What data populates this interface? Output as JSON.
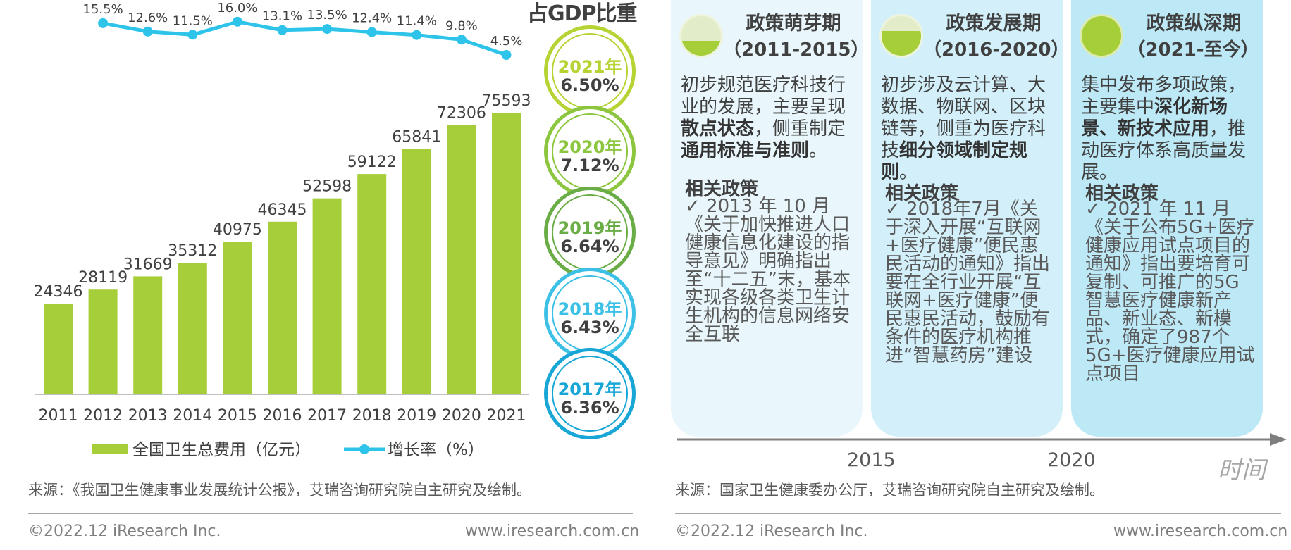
{
  "chart_data": {
    "type": "bar",
    "categories": [
      "2011",
      "2012",
      "2013",
      "2014",
      "2015",
      "2016",
      "2017",
      "2018",
      "2019",
      "2020",
      "2021"
    ],
    "series": [
      {
        "name": "全国卫生总费用（亿元）",
        "type": "bar",
        "values": [
          24346,
          28119,
          31669,
          35312,
          40975,
          46345,
          52598,
          59122,
          65841,
          72306,
          75593
        ],
        "color": "#a6ce39"
      },
      {
        "name": "增长率（%）",
        "type": "line",
        "values": [
          15.5,
          12.6,
          11.5,
          16.0,
          13.1,
          13.5,
          12.4,
          11.4,
          9.8,
          4.5
        ],
        "value_labels": [
          "15.5%",
          "12.6%",
          "11.5%",
          "16.0%",
          "13.1%",
          "13.5%",
          "12.4%",
          "11.4%",
          "9.8%",
          "4.5%"
        ],
        "x": [
          "2012",
          "2013",
          "2014",
          "2015",
          "2016",
          "2017",
          "2018",
          "2019",
          "2020",
          "2021"
        ],
        "color": "#2ec4ea"
      }
    ],
    "legend": "bottom",
    "grid": false
  },
  "gdp": {
    "title": "占GDP比重",
    "items": [
      {
        "year": "2021年",
        "value": "6.50%",
        "color": "#b6d334"
      },
      {
        "year": "2020年",
        "value": "7.12%",
        "color": "#8cc63f"
      },
      {
        "year": "2019年",
        "value": "6.64%",
        "color": "#6aac46"
      },
      {
        "year": "2018年",
        "value": "6.43%",
        "color": "#3cc0e6"
      },
      {
        "year": "2017年",
        "value": "6.36%",
        "color": "#17a6d6"
      }
    ]
  },
  "left_source": "来源：《我国卫生健康事业发展统计公报》，艾瑞咨询研究院自主研究及绘制。",
  "left_footer": {
    "copyright": "©2022.12 iResearch Inc.",
    "website": "www.iresearch.com.cn"
  },
  "phases": [
    {
      "title": "政策萌芽期",
      "years": "（2011-2015）",
      "desc": [
        {
          "t": "初步规范医疗科技行业的发展，主要呈现",
          "b": false
        },
        {
          "t": "散点状态",
          "b": true
        },
        {
          "t": "，侧重制定",
          "b": false
        },
        {
          "t": "通用标准与准则",
          "b": true
        },
        {
          "t": "。",
          "b": false
        }
      ],
      "related_title": "相关政策",
      "related_body": "✓ 2013 年 10 月《关于加快推进人口健康信息化建设的指导意见》明确指出至“十二五”末，基本实现各级各类卫生计生机构的信息网络安全互联"
    },
    {
      "title": "政策发展期",
      "years": "（2016-2020）",
      "desc": [
        {
          "t": "初步涉及云计算、大数据、物联网、区块链等，侧重为医疗科技",
          "b": false
        },
        {
          "t": "细分领域制定规则",
          "b": true
        },
        {
          "t": "。",
          "b": false
        }
      ],
      "related_title": "相关政策",
      "related_body": "✓ 2018年7月《关于深入开展“互联网+医疗健康”便民惠民活动的通知》指出要在全行业开展“互联网+医疗健康”便民惠民活动，鼓励有条件的医疗机构推进“智慧药房”建设"
    },
    {
      "title": "政策纵深期",
      "years": "（2021-至今）",
      "desc": [
        {
          "t": "集中发布多项政策，主要集中",
          "b": false
        },
        {
          "t": "深化新场景、新技术应用",
          "b": true
        },
        {
          "t": "，推动医疗体系高质量发展。",
          "b": false
        }
      ],
      "related_title": "相关政策",
      "related_body": "✓ 2021 年 11 月《关于公布5G+医疗健康应用试点项目的通知》指出要培育可复制、可推广的5G智慧医疗健康新产品、新业态、新模式，确定了987个5G+医疗健康应用试点项目"
    }
  ],
  "timeline": {
    "ticks": [
      "2015",
      "2020"
    ],
    "axis_label": "时间"
  },
  "right_source": "来源：国家卫生健康委办公厅，艾瑞咨询研究院自主研究及绘制。",
  "right_footer": {
    "copyright": "©2022.12 iResearch Inc.",
    "website": "www.iresearch.com.cn"
  }
}
